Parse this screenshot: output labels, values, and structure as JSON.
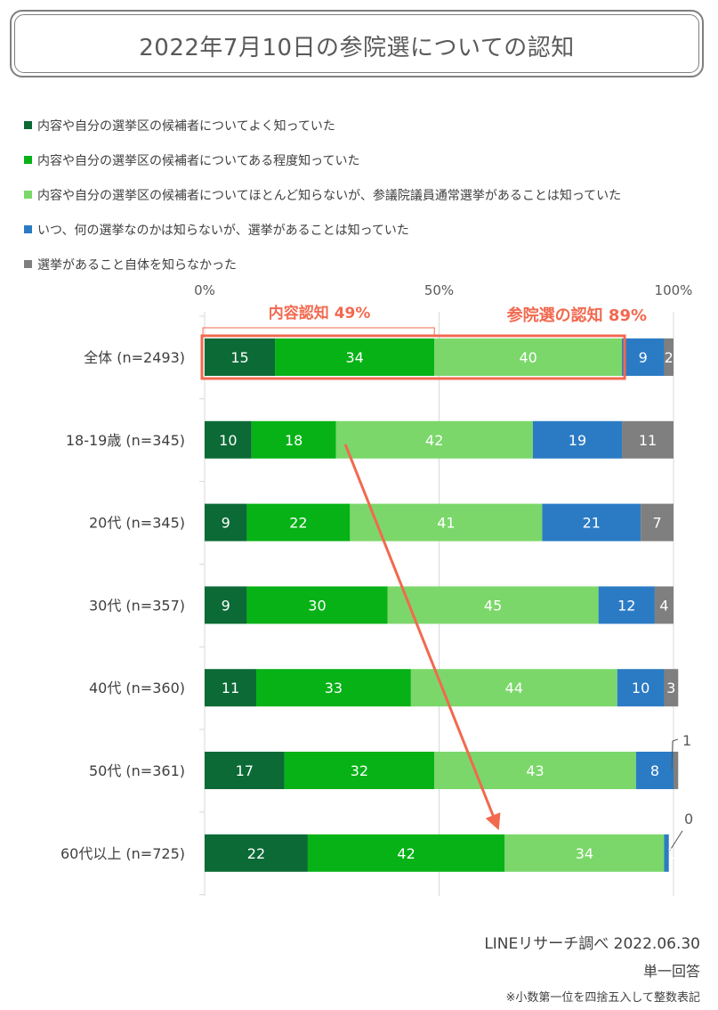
{
  "title": "2022年7月10日の参院選についての認知",
  "legend": [
    {
      "label": "内容や自分の選挙区の候補者についてよく知っていた",
      "color": "#0b6a35"
    },
    {
      "label": "内容や自分の選挙区の候補者についてある程度知っていた",
      "color": "#06b216"
    },
    {
      "label": "内容や自分の選挙区の候補者についてほとんど知らないが、参議院議員通常選挙があることは知っていた",
      "color": "#7bd76a"
    },
    {
      "label": "いつ、何の選挙なのかは知らないが、選挙があることは知っていた",
      "color": "#2b7bc4"
    },
    {
      "label": "選挙があること自体を知らなかった",
      "color": "#7f7f7f"
    }
  ],
  "chart_data": {
    "type": "bar",
    "orientation": "horizontal",
    "stacked": true,
    "x_tick_labels": [
      "0%",
      "50%",
      "100%"
    ],
    "xlim": [
      0,
      100
    ],
    "categories": [
      "全体 (n=2493)",
      "18-19歳 (n=345)",
      "20代 (n=345)",
      "30代 (n=357)",
      "40代 (n=360)",
      "50代 (n=361)",
      "60代以上 (n=725)"
    ],
    "series": [
      {
        "name": "内容や自分の選挙区の候補者についてよく知っていた",
        "color": "#0b6a35",
        "values": [
          15,
          10,
          9,
          9,
          11,
          17,
          22
        ]
      },
      {
        "name": "内容や自分の選挙区の候補者についてある程度知っていた",
        "color": "#06b216",
        "values": [
          34,
          18,
          22,
          30,
          33,
          32,
          42
        ]
      },
      {
        "name": "内容や自分の選挙区の候補者についてほとんど知らないが、参議院議員通常選挙があることは知っていた",
        "color": "#7bd76a",
        "values": [
          40,
          42,
          41,
          45,
          44,
          43,
          34
        ]
      },
      {
        "name": "いつ、何の選挙なのかは知らないが、選挙があることは知っていた",
        "color": "#2b7bc4",
        "values": [
          9,
          19,
          21,
          12,
          10,
          8,
          1
        ]
      },
      {
        "name": "選挙があること自体を知らなかった",
        "color": "#7f7f7f",
        "values": [
          2,
          11,
          7,
          4,
          3,
          1,
          0
        ]
      }
    ],
    "annotations": {
      "content_awareness_label": "内容認知 49%",
      "content_awareness_value": 49,
      "election_awareness_label": "参院選の認知 89%",
      "election_awareness_value": 89,
      "accent_color": "#f2694f"
    }
  },
  "footer": {
    "source": "LINEリサーチ調べ 2022.06.30",
    "answer_type": "単一回答",
    "note": "※小数第一位を四捨五入して整数表記"
  }
}
